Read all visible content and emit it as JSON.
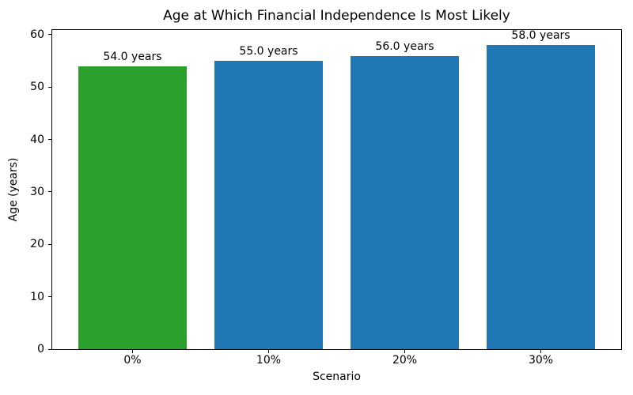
{
  "chart_data": {
    "type": "bar",
    "title": "Age at Which Financial Independence Is Most Likely",
    "xlabel": "Scenario",
    "ylabel": "Age (years)",
    "categories": [
      "0%",
      "10%",
      "20%",
      "30%"
    ],
    "values": [
      54.0,
      55.0,
      56.0,
      58.0
    ],
    "bar_labels": [
      "54.0 years",
      "55.0 years",
      "56.0 years",
      "58.0 years"
    ],
    "bar_colors": [
      "#2ca02c",
      "#1f77b4",
      "#1f77b4",
      "#1f77b4"
    ],
    "ylim": [
      0,
      60.9
    ],
    "yticks": [
      0,
      10,
      20,
      30,
      40,
      50,
      60
    ],
    "grid": false,
    "legend_position": "none",
    "axis_color": "#000000",
    "background_color": "#ffffff"
  }
}
